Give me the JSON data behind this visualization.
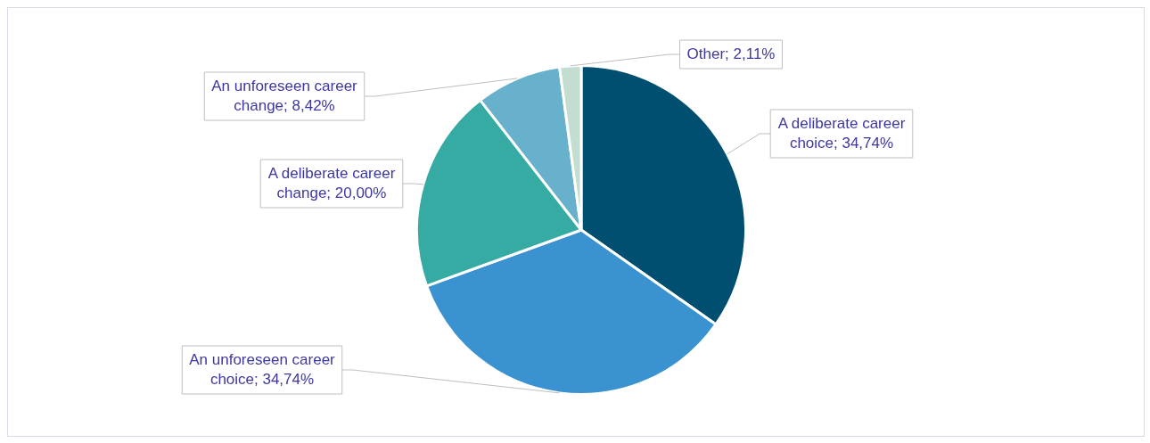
{
  "chart_data": {
    "type": "pie",
    "categories": [
      "A deliberate career choice",
      "An unforeseen career choice",
      "A deliberate career change",
      "An unforeseen career change",
      "Other"
    ],
    "values": [
      34.74,
      34.74,
      20.0,
      8.42,
      2.11
    ],
    "value_labels": [
      "34,74%",
      "34,74%",
      "20,00%",
      "8,42%",
      "2,11%"
    ],
    "colors": [
      "#004f71",
      "#3a93d0",
      "#36aba3",
      "#67b1cc",
      "#c3ddd0"
    ],
    "legend": false
  }
}
